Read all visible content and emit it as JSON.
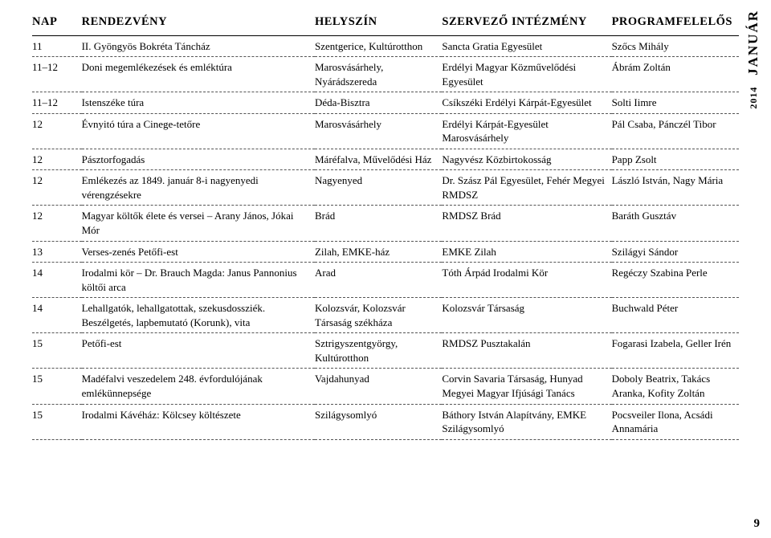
{
  "sidebar": {
    "year": "2014",
    "month": "JANUÁR"
  },
  "page_number": "9",
  "table": {
    "headers": [
      "NAP",
      "RENDEZVÉNY",
      "HELYSZÍN",
      "SZERVEZŐ INTÉZMÉNY",
      "PROGRAMFELELŐS"
    ],
    "rows": [
      [
        "11",
        "II. Gyöngyös Bokréta Táncház",
        "Szentgerice, Kultúrotthon",
        "Sancta Gratia Egyesület",
        "Szőcs Mihály"
      ],
      [
        "11–12",
        "Doni megemlékezések és emléktúra",
        "Marosvásárhely, Nyárádszereda",
        "Erdélyi Magyar Közművelődési Egyesület",
        "Ábrám Zoltán"
      ],
      [
        "11–12",
        "Istenszéke túra",
        "Déda-Bisztra",
        "Csíkszéki Erdélyi Kárpát-Egyesület",
        "Solti Iimre"
      ],
      [
        "12",
        "Évnyitó túra a Cinege-tetőre",
        "Marosvásárhely",
        "Erdélyi Kárpát-Egyesület Marosvásárhely",
        "Pál Csaba, Pánczél Tibor"
      ],
      [
        "12",
        "Pásztorfogadás",
        "Máréfalva, Művelő­dési Ház",
        "Nagyvész Közbirtokosság",
        "Papp Zsolt"
      ],
      [
        "12",
        "Emlékezés az 1849. január 8-i nagyenyedi vérengzésekre",
        "Nagyenyed",
        "Dr. Szász Pál Egyesület, Fehér Megyei RMDSZ",
        "László István, Nagy Mária"
      ],
      [
        "12",
        "Magyar költők élete és versei – Arany János, Jókai Mór",
        "Brád",
        "RMDSZ Brád",
        "Baráth Gusztáv"
      ],
      [
        "13",
        "Verses-zenés Petőfi-est",
        "Zilah, EMKE-ház",
        "EMKE Zilah",
        "Szilágyi Sándor"
      ],
      [
        "14",
        "Irodalmi kör – Dr. Brauch Magda: Janus Pannonius költői arca",
        "Arad",
        "Tóth Árpád Irodalmi Kör",
        "Regéczy Szabina Perle"
      ],
      [
        "14",
        "Lehallgatók, lehallgatottak, szekusdossziék. Beszélgetés, lapbemutató (Korunk), vita",
        "Kolozsvár, Kolozsvár Társaság székháza",
        "Kolozsvár Társaság",
        "Buchwald Péter"
      ],
      [
        "15",
        "Petőfi-est",
        "Sztrigyszentgyörgy, Kultúrotthon",
        "RMDSZ Pusztakalán",
        "Fogarasi Izabela, Geller Irén"
      ],
      [
        "15",
        "Madéfalvi veszedelem 248. évfordulójának emlékünnepsége",
        "Vajdahunyad",
        "Corvin Savaria Társaság, Hunyad Megyei Magyar Ifjúsági Tanács",
        "Doboly Beatrix, Takács Aranka, Kofity Zoltán"
      ],
      [
        "15",
        "Irodalmi Kávéház: Kölcsey költészete",
        "Szilágysomlyó",
        "Báthory István Alapítvány, EMKE Szilágysomlyó",
        "Pocsveiler Ilona, Acsádi Annamária"
      ]
    ]
  }
}
